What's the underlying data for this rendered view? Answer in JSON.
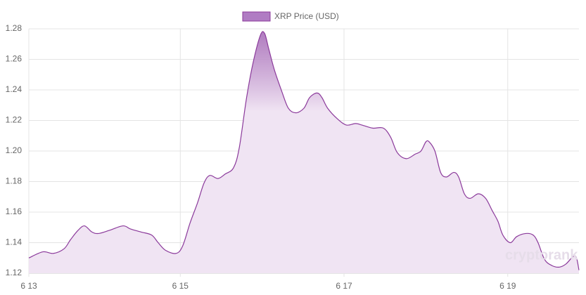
{
  "chart_data": {
    "type": "area",
    "legend": "XRP Price (USD)",
    "watermark": "cryptorank",
    "color": "#8b3a9b",
    "fill": "#f0e4f3",
    "grid": true,
    "x": [
      13.15,
      13.32,
      13.45,
      13.58,
      13.66,
      13.75,
      13.83,
      13.92,
      14.0,
      14.13,
      14.3,
      14.39,
      14.52,
      14.65,
      14.73,
      14.82,
      14.95,
      15.03,
      15.12,
      15.21,
      15.29,
      15.36,
      15.46,
      15.55,
      15.65,
      15.72,
      15.81,
      15.89,
      15.98,
      16.03,
      16.08,
      16.15,
      16.24,
      16.32,
      16.41,
      16.51,
      16.58,
      16.67,
      16.73,
      16.8,
      16.92,
      17.03,
      17.14,
      17.22,
      17.35,
      17.48,
      17.57,
      17.65,
      17.76,
      17.87,
      17.94,
      18.0,
      18.04,
      18.11,
      18.18,
      18.25,
      18.34,
      18.4,
      18.47,
      18.54,
      18.64,
      18.73,
      18.81,
      18.88,
      18.94,
      19.03,
      19.11,
      19.22,
      19.31,
      19.37,
      19.45,
      19.54,
      19.63,
      19.71,
      19.8,
      19.84,
      19.87
    ],
    "values": [
      1.13,
      1.134,
      1.133,
      1.136,
      1.142,
      1.148,
      1.151,
      1.147,
      1.146,
      1.148,
      1.151,
      1.149,
      1.147,
      1.145,
      1.14,
      1.135,
      1.133,
      1.138,
      1.153,
      1.166,
      1.179,
      1.184,
      1.182,
      1.185,
      1.189,
      1.202,
      1.235,
      1.258,
      1.276,
      1.277,
      1.267,
      1.253,
      1.239,
      1.228,
      1.225,
      1.228,
      1.235,
      1.238,
      1.235,
      1.228,
      1.221,
      1.217,
      1.218,
      1.217,
      1.215,
      1.215,
      1.209,
      1.199,
      1.195,
      1.198,
      1.2,
      1.206,
      1.206,
      1.2,
      1.186,
      1.183,
      1.186,
      1.183,
      1.172,
      1.169,
      1.172,
      1.169,
      1.161,
      1.154,
      1.145,
      1.14,
      1.144,
      1.146,
      1.145,
      1.14,
      1.129,
      1.125,
      1.124,
      1.126,
      1.131,
      1.13,
      1.122
    ],
    "xlim": [
      13.15,
      19.87
    ],
    "xticks": [
      {
        "value": 13.15,
        "label": "6 13"
      },
      {
        "value": 15,
        "label": "6 15"
      },
      {
        "value": 17,
        "label": "6 17"
      },
      {
        "value": 19,
        "label": "6 19"
      }
    ],
    "ylim": [
      1.12,
      1.28
    ],
    "yticks": [
      1.12,
      1.14,
      1.16,
      1.18,
      {
        "value": 1.2,
        "label": "1.20"
      },
      1.22,
      1.24,
      1.26,
      1.28
    ]
  }
}
